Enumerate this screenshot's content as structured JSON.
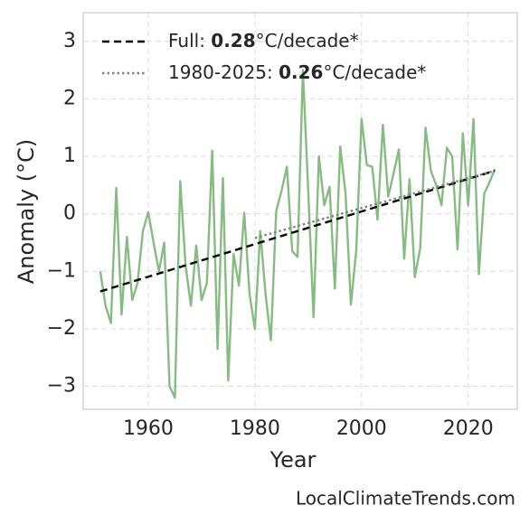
{
  "chart_data": {
    "type": "line",
    "x": [
      1951,
      1952,
      1953,
      1954,
      1955,
      1956,
      1957,
      1958,
      1959,
      1960,
      1961,
      1962,
      1963,
      1964,
      1965,
      1966,
      1967,
      1968,
      1969,
      1970,
      1971,
      1972,
      1973,
      1974,
      1975,
      1976,
      1977,
      1978,
      1979,
      1980,
      1981,
      1982,
      1983,
      1984,
      1985,
      1986,
      1987,
      1988,
      1989,
      1990,
      1991,
      1992,
      1993,
      1994,
      1995,
      1996,
      1997,
      1998,
      1999,
      2000,
      2001,
      2002,
      2003,
      2004,
      2005,
      2006,
      2007,
      2008,
      2009,
      2010,
      2011,
      2012,
      2013,
      2014,
      2015,
      2016,
      2017,
      2018,
      2019,
      2020,
      2021,
      2022,
      2023,
      2024,
      2025
    ],
    "series": [
      {
        "color": "#86bb82",
        "values": [
          -1.0,
          -1.6,
          -1.9,
          0.45,
          -1.75,
          -0.4,
          -1.5,
          -1.2,
          -0.3,
          0.03,
          -0.5,
          -1.0,
          -0.5,
          -3.0,
          -3.2,
          0.57,
          -0.9,
          -1.6,
          -0.55,
          -1.5,
          -1.2,
          1.1,
          -2.35,
          0.62,
          -2.9,
          -0.7,
          -1.25,
          0.02,
          -1.4,
          -2.0,
          -0.3,
          -1.4,
          -2.2,
          0.05,
          0.4,
          0.82,
          -0.65,
          -0.75,
          2.5,
          0.4,
          -1.8,
          1.0,
          0.15,
          0.47,
          -1.3,
          1.17,
          0.35,
          -1.58,
          -0.65,
          1.65,
          0.85,
          0.82,
          -0.1,
          1.55,
          0.3,
          0.7,
          1.12,
          -0.78,
          0.6,
          -1.1,
          -0.6,
          1.5,
          0.75,
          0.5,
          0.15,
          1.15,
          1.0,
          -0.62,
          1.4,
          0.15,
          1.65,
          -1.05,
          0.35,
          0.55,
          0.78
        ]
      }
    ],
    "trends": [
      {
        "name": [
          "Full: ",
          "0.28",
          "°C/decade*"
        ],
        "name_bold": 1,
        "style": "dashed",
        "color": "#000000",
        "x": [
          1951,
          2025
        ],
        "values": [
          -1.35,
          0.75
        ]
      },
      {
        "name": [
          "1980-2025: ",
          "0.26",
          "°C/decade*"
        ],
        "name_bold": 1,
        "style": "dotted",
        "color": "#808080",
        "x": [
          1980,
          2025
        ],
        "values": [
          -0.42,
          0.75
        ]
      }
    ],
    "xlabel": "Year",
    "ylabel": "Anomaly (°C)",
    "xlim": [
      1947.8,
      2029.2
    ],
    "ylim": [
      -3.4,
      3.5
    ],
    "xticks": [
      1960,
      1980,
      2000,
      2020
    ],
    "yticks": [
      {
        "value": -3,
        "label": "−3"
      },
      {
        "value": -2,
        "label": "−2"
      },
      {
        "value": -1,
        "label": "−1"
      },
      0,
      1,
      2,
      3
    ],
    "grid": true,
    "legend": "upper left",
    "source": "LocalClimateTrends.com"
  }
}
